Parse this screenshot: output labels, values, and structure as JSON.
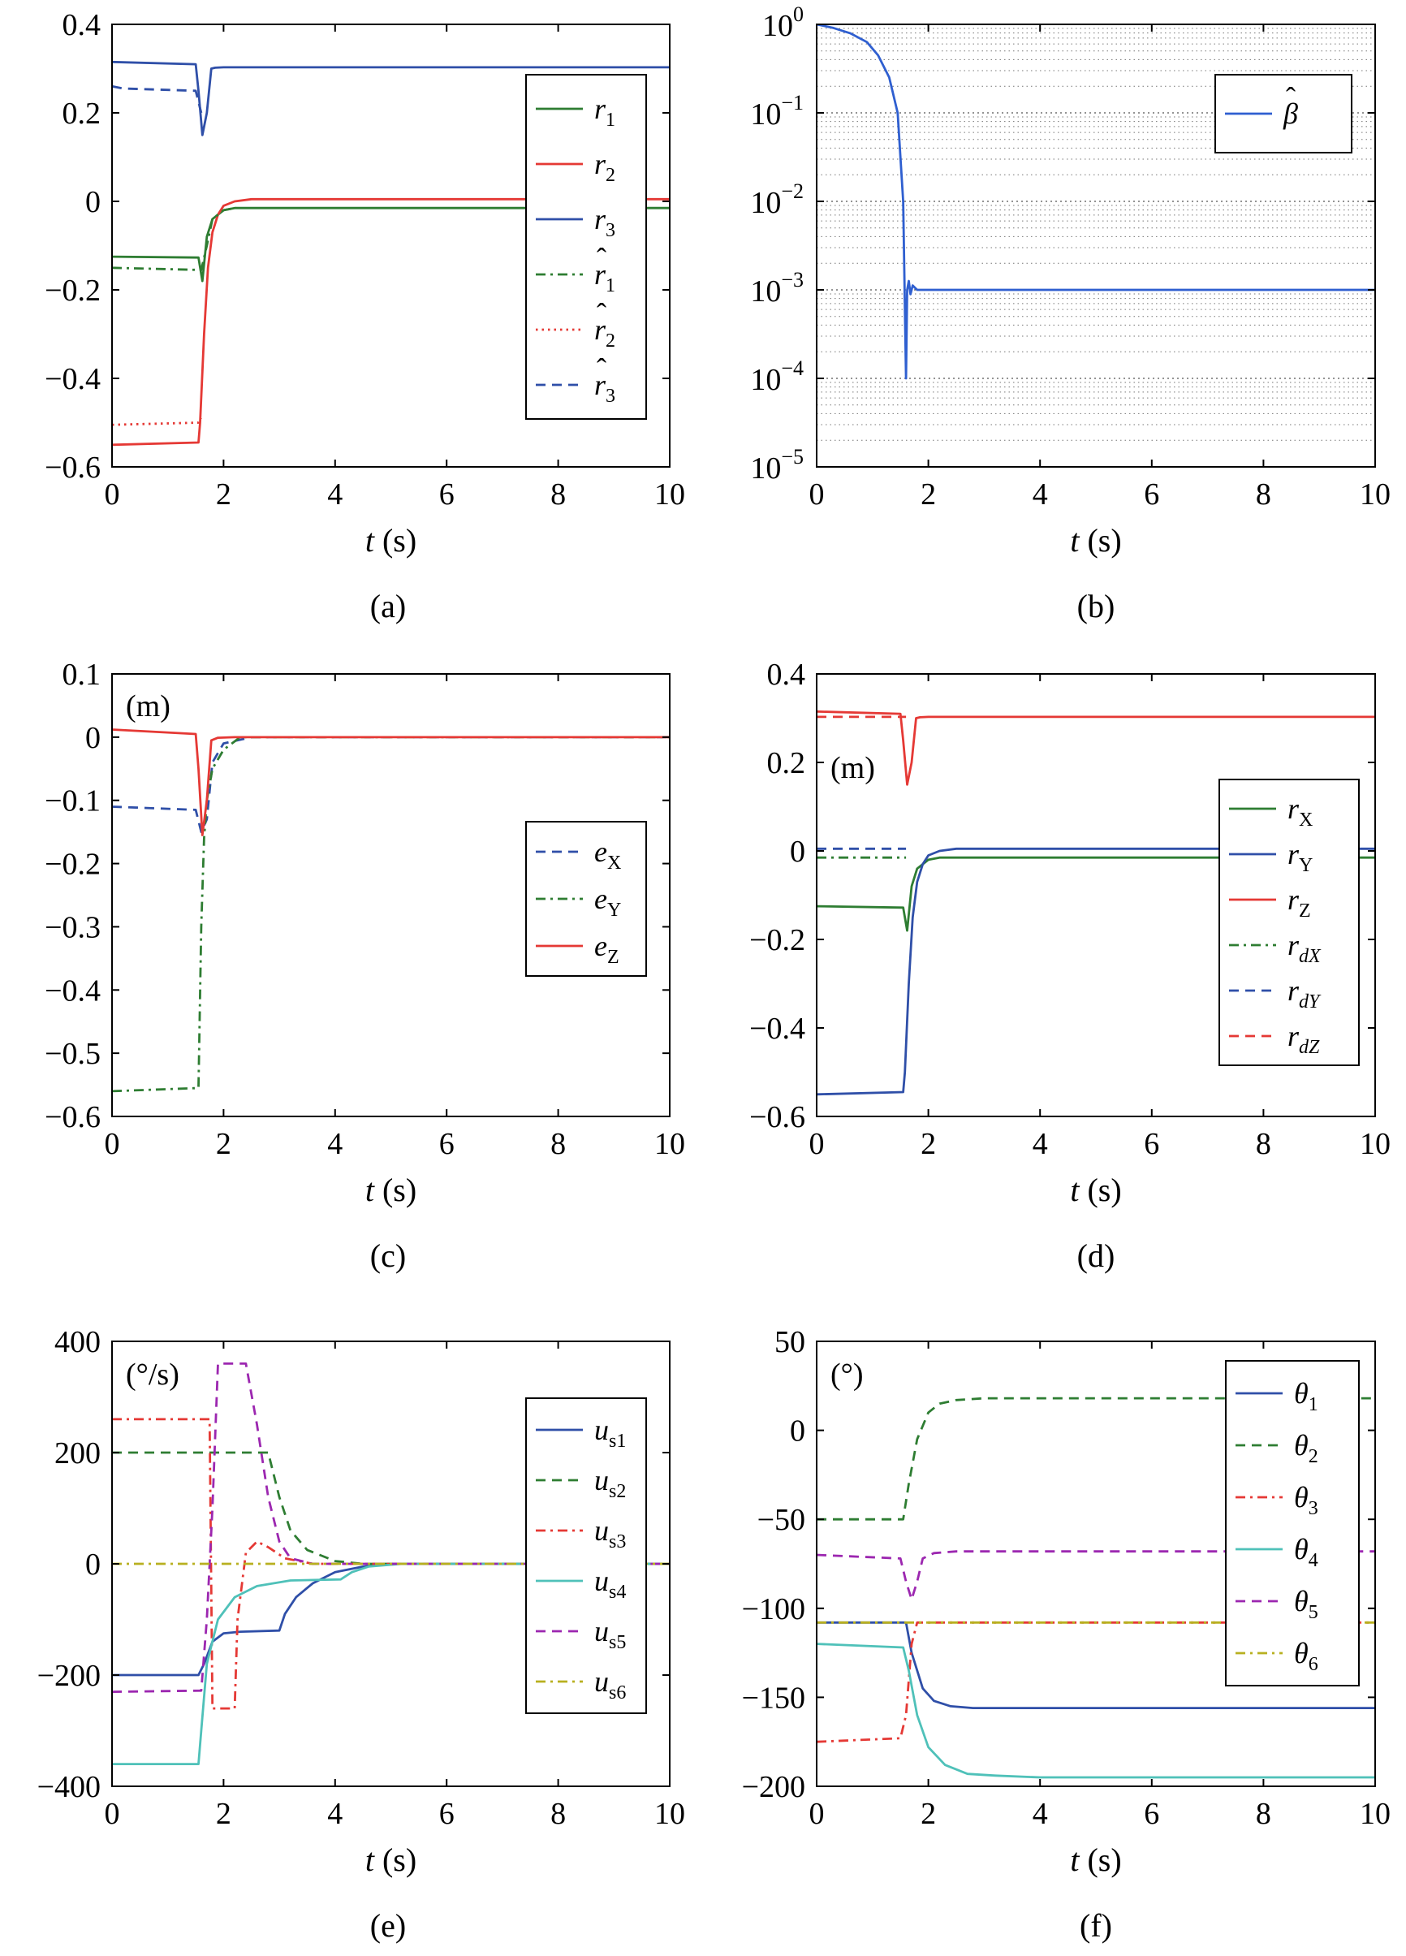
{
  "colors": {
    "green": "#2e7d32",
    "red": "#e53935",
    "blue": "#2f4fa8",
    "beta": "#2f5fd0",
    "cyan": "#4fc1b9",
    "purple": "#9c27b0",
    "olive": "#b8b020"
  },
  "chart_data": [
    {
      "id": "a",
      "type": "line",
      "panel_label": "(a)",
      "inner_label": "",
      "xlabel_italic": "t",
      "xlabel_unit": " (s)",
      "xlim": [
        0,
        10
      ],
      "ylim": [
        -0.6,
        0.4
      ],
      "xticks": [
        0,
        2,
        4,
        6,
        8,
        10
      ],
      "xtick_labels": [
        "0",
        "2",
        "4",
        "6",
        "8",
        "10"
      ],
      "yticks": [
        0.4,
        0.2,
        0,
        -0.2,
        -0.4,
        -0.6
      ],
      "ytick_labels": [
        "0.4",
        "0.2",
        "0",
        "−0.2",
        "−0.4",
        "−0.6"
      ],
      "legend": {
        "position": "right",
        "entries": [
          {
            "sym": "r",
            "sub": "1",
            "hat": false
          },
          {
            "sym": "r",
            "sub": "2",
            "hat": false
          },
          {
            "sym": "r",
            "sub": "3",
            "hat": false
          },
          {
            "sym": "r",
            "sub": "1",
            "hat": true
          },
          {
            "sym": "r",
            "sub": "2",
            "hat": true
          },
          {
            "sym": "r",
            "sub": "3",
            "hat": true
          }
        ]
      },
      "series": [
        {
          "color": "green",
          "dash": "solid",
          "x": [
            0,
            1.55,
            1.62,
            1.7,
            1.8,
            2.0,
            2.2,
            10
          ],
          "y": [
            -0.125,
            -0.127,
            -0.18,
            -0.08,
            -0.04,
            -0.02,
            -0.015,
            -0.015
          ]
        },
        {
          "color": "red",
          "dash": "solid",
          "x": [
            0,
            1.55,
            1.58,
            1.65,
            1.72,
            1.8,
            1.9,
            2.0,
            2.2,
            2.5,
            10
          ],
          "y": [
            -0.55,
            -0.545,
            -0.5,
            -0.3,
            -0.15,
            -0.07,
            -0.03,
            -0.01,
            0.0,
            0.005,
            0.005
          ]
        },
        {
          "color": "blue",
          "dash": "solid",
          "x": [
            0,
            1.5,
            1.55,
            1.62,
            1.7,
            1.78,
            1.85,
            2.0,
            10
          ],
          "y": [
            0.315,
            0.31,
            0.25,
            0.15,
            0.2,
            0.3,
            0.302,
            0.303,
            0.303
          ]
        },
        {
          "color": "green",
          "dash": "dashdot",
          "x": [
            0,
            1.6,
            1.7,
            1.8,
            2.0,
            2.2
          ],
          "y": [
            -0.15,
            -0.155,
            -0.1,
            -0.04,
            -0.02,
            -0.015
          ]
        },
        {
          "color": "red",
          "dash": "dotted",
          "x": [
            0,
            1.55,
            1.6
          ],
          "y": [
            -0.505,
            -0.5,
            -0.49
          ]
        },
        {
          "color": "blue",
          "dash": "dashed",
          "x": [
            0,
            0.2,
            1.5,
            1.6
          ],
          "y": [
            0.26,
            0.255,
            0.25,
            0.2
          ]
        }
      ]
    },
    {
      "id": "b",
      "type": "line",
      "panel_label": "(b)",
      "inner_label": "",
      "xlabel_italic": "t",
      "xlabel_unit": " (s)",
      "xlim": [
        0,
        10
      ],
      "ylim": [
        -5,
        0
      ],
      "log_y": true,
      "grid": "log-y dotted",
      "xticks": [
        0,
        2,
        4,
        6,
        8,
        10
      ],
      "xtick_labels": [
        "0",
        "2",
        "4",
        "6",
        "8",
        "10"
      ],
      "yticks": [
        0,
        -1,
        -2,
        -3,
        -4,
        -5
      ],
      "ytick_bases": [
        "10",
        "10",
        "10",
        "10",
        "10",
        "10"
      ],
      "ytick_exps": [
        "0",
        "−1",
        "−2",
        "−3",
        "−4",
        "−5"
      ],
      "legend": {
        "position": "top-right",
        "entries": [
          {
            "sym": "β",
            "sub": "",
            "hat": true
          }
        ]
      },
      "series": [
        {
          "color": "beta",
          "dash": "solid",
          "x": [
            0,
            0.3,
            0.6,
            0.9,
            1.1,
            1.3,
            1.45,
            1.55,
            1.6,
            1.62,
            1.65,
            1.68,
            1.72,
            1.8,
            1.9,
            10
          ],
          "y": [
            0,
            -0.04,
            -0.1,
            -0.2,
            -0.35,
            -0.6,
            -1.0,
            -2.0,
            -4.0,
            -3.0,
            -2.9,
            -3.05,
            -2.95,
            -3.0,
            -3.0,
            -3.0
          ]
        }
      ]
    },
    {
      "id": "c",
      "type": "line",
      "panel_label": "(c)",
      "inner_label": "(m)",
      "xlabel_italic": "t",
      "xlabel_unit": " (s)",
      "xlim": [
        0,
        10
      ],
      "ylim": [
        -0.6,
        0.1
      ],
      "xticks": [
        0,
        2,
        4,
        6,
        8,
        10
      ],
      "xtick_labels": [
        "0",
        "2",
        "4",
        "6",
        "8",
        "10"
      ],
      "yticks": [
        0.1,
        0,
        -0.1,
        -0.2,
        -0.3,
        -0.4,
        -0.5,
        -0.6
      ],
      "ytick_labels": [
        "0.1",
        "0",
        "−0.1",
        "−0.2",
        "−0.3",
        "−0.4",
        "−0.5",
        "−0.6"
      ],
      "legend": {
        "position": "right",
        "entries": [
          {
            "sym": "e",
            "sub": "X",
            "hat": false
          },
          {
            "sym": "e",
            "sub": "Y",
            "hat": false
          },
          {
            "sym": "e",
            "sub": "Z",
            "hat": false
          }
        ]
      },
      "series": [
        {
          "color": "blue",
          "dash": "dashed",
          "x": [
            0,
            1.5,
            1.6,
            1.7,
            1.8,
            2.0,
            2.5,
            10
          ],
          "y": [
            -0.11,
            -0.115,
            -0.15,
            -0.13,
            -0.04,
            -0.01,
            0,
            0
          ]
        },
        {
          "color": "green",
          "dash": "dashdot",
          "x": [
            0,
            1.55,
            1.6,
            1.65,
            1.7,
            1.8,
            2.0,
            2.3,
            10
          ],
          "y": [
            -0.56,
            -0.555,
            -0.3,
            -0.16,
            -0.1,
            -0.05,
            -0.02,
            0,
            0
          ]
        },
        {
          "color": "red",
          "dash": "solid",
          "x": [
            0,
            1.5,
            1.55,
            1.62,
            1.7,
            1.78,
            1.9,
            2.2,
            10
          ],
          "y": [
            0.012,
            0.005,
            -0.05,
            -0.155,
            -0.1,
            -0.005,
            -0.001,
            0,
            0
          ]
        }
      ]
    },
    {
      "id": "d",
      "type": "line",
      "panel_label": "(d)",
      "inner_label": "(m)",
      "xlabel_italic": "t",
      "xlabel_unit": " (s)",
      "xlim": [
        0,
        10
      ],
      "ylim": [
        -0.6,
        0.4
      ],
      "xticks": [
        0,
        2,
        4,
        6,
        8,
        10
      ],
      "xtick_labels": [
        "0",
        "2",
        "4",
        "6",
        "8",
        "10"
      ],
      "yticks": [
        0.4,
        0.2,
        0,
        -0.2,
        -0.4,
        -0.6
      ],
      "ytick_labels": [
        "0.4",
        "0.2",
        "0",
        "−0.2",
        "−0.4",
        "−0.6"
      ],
      "legend": {
        "position": "right",
        "entries": [
          {
            "sym": "r",
            "sub": "X",
            "hat": false
          },
          {
            "sym": "r",
            "sub": "Y",
            "hat": false
          },
          {
            "sym": "r",
            "sub": "Z",
            "hat": false
          },
          {
            "sym": "r",
            "sub": "dX",
            "hat": false
          },
          {
            "sym": "r",
            "sub": "dY",
            "hat": false
          },
          {
            "sym": "r",
            "sub": "dZ",
            "hat": false
          }
        ]
      },
      "series": [
        {
          "color": "green",
          "dash": "solid",
          "x": [
            0,
            1.55,
            1.62,
            1.7,
            1.8,
            2.0,
            2.2,
            10
          ],
          "y": [
            -0.125,
            -0.128,
            -0.18,
            -0.08,
            -0.04,
            -0.02,
            -0.015,
            -0.015
          ]
        },
        {
          "color": "blue",
          "dash": "solid",
          "x": [
            0,
            1.55,
            1.58,
            1.65,
            1.72,
            1.8,
            1.9,
            2.0,
            2.2,
            2.5,
            10
          ],
          "y": [
            -0.55,
            -0.545,
            -0.5,
            -0.3,
            -0.15,
            -0.07,
            -0.03,
            -0.01,
            0.0,
            0.005,
            0.005
          ]
        },
        {
          "color": "red",
          "dash": "solid",
          "x": [
            0,
            1.5,
            1.55,
            1.62,
            1.7,
            1.78,
            1.85,
            2.0,
            10
          ],
          "y": [
            0.315,
            0.31,
            0.25,
            0.15,
            0.2,
            0.3,
            0.302,
            0.303,
            0.303
          ]
        },
        {
          "color": "green",
          "dash": "dashdot",
          "x": [
            0,
            1.6
          ],
          "y": [
            -0.015,
            -0.015
          ]
        },
        {
          "color": "blue",
          "dash": "dashed",
          "x": [
            0,
            1.6
          ],
          "y": [
            0.005,
            0.005
          ]
        },
        {
          "color": "red",
          "dash": "dashed",
          "x": [
            0,
            1.6
          ],
          "y": [
            0.303,
            0.303
          ]
        }
      ]
    },
    {
      "id": "e",
      "type": "line",
      "panel_label": "(e)",
      "inner_label": "(°/s)",
      "xlabel_italic": "t",
      "xlabel_unit": " (s)",
      "xlim": [
        0,
        10
      ],
      "ylim": [
        -400,
        400
      ],
      "xticks": [
        0,
        2,
        4,
        6,
        8,
        10
      ],
      "xtick_labels": [
        "0",
        "2",
        "4",
        "6",
        "8",
        "10"
      ],
      "yticks": [
        400,
        200,
        0,
        -200,
        -400
      ],
      "ytick_labels": [
        "400",
        "200",
        "0",
        "−200",
        "−400"
      ],
      "legend": {
        "position": "right",
        "entries": [
          {
            "sym": "u",
            "sub": "s1",
            "hat": false
          },
          {
            "sym": "u",
            "sub": "s2",
            "hat": false
          },
          {
            "sym": "u",
            "sub": "s3",
            "hat": false
          },
          {
            "sym": "u",
            "sub": "s4",
            "hat": false
          },
          {
            "sym": "u",
            "sub": "s5",
            "hat": false
          },
          {
            "sym": "u",
            "sub": "s6",
            "hat": false
          }
        ]
      },
      "series": [
        {
          "color": "blue",
          "dash": "solid",
          "x": [
            0,
            1.55,
            1.65,
            1.8,
            2.0,
            2.3,
            3.0,
            3.1,
            3.3,
            3.6,
            4.0,
            4.5,
            5.0,
            10
          ],
          "y": [
            -200,
            -200,
            -180,
            -140,
            -125,
            -122,
            -120,
            -90,
            -60,
            -35,
            -15,
            -5,
            0,
            0
          ]
        },
        {
          "color": "green",
          "dash": "dashed",
          "x": [
            0,
            2.8,
            3.0,
            3.2,
            3.5,
            4.0,
            4.5,
            10
          ],
          "y": [
            200,
            200,
            120,
            60,
            25,
            5,
            0,
            0
          ]
        },
        {
          "color": "red",
          "dash": "dashdot",
          "x": [
            0,
            1.75,
            1.8,
            2.2,
            2.25,
            2.4,
            2.6,
            2.8,
            3.1,
            3.6,
            4.2,
            10
          ],
          "y": [
            260,
            260,
            -260,
            -260,
            -100,
            20,
            40,
            30,
            10,
            0,
            0,
            0
          ]
        },
        {
          "color": "cyan",
          "dash": "solid",
          "x": [
            0,
            1.55,
            1.6,
            1.7,
            1.9,
            2.2,
            2.6,
            3.2,
            4.1,
            4.3,
            4.6,
            5.2,
            10
          ],
          "y": [
            -360,
            -360,
            -300,
            -180,
            -100,
            -60,
            -40,
            -30,
            -28,
            -15,
            -5,
            0,
            0
          ]
        },
        {
          "color": "purple",
          "dash": "dashed",
          "x": [
            0,
            1.6,
            1.7,
            1.8,
            1.9,
            2.0,
            2.4,
            2.6,
            2.8,
            3.0,
            3.2,
            3.6,
            4.2,
            10
          ],
          "y": [
            -230,
            -228,
            -100,
            100,
            360,
            360,
            360,
            250,
            120,
            40,
            10,
            0,
            0,
            0
          ]
        },
        {
          "color": "olive",
          "dash": "dashdot",
          "x": [
            0,
            10
          ],
          "y": [
            0,
            0
          ]
        }
      ]
    },
    {
      "id": "f",
      "type": "line",
      "panel_label": "(f)",
      "inner_label": "(°)",
      "xlabel_italic": "t",
      "xlabel_unit": " (s)",
      "xlim": [
        0,
        10
      ],
      "ylim": [
        -200,
        50
      ],
      "xticks": [
        0,
        2,
        4,
        6,
        8,
        10
      ],
      "xtick_labels": [
        "0",
        "2",
        "4",
        "6",
        "8",
        "10"
      ],
      "yticks": [
        50,
        0,
        -50,
        -100,
        -150,
        -200
      ],
      "ytick_labels": [
        "50",
        "0",
        "−50",
        "−100",
        "−150",
        "−200"
      ],
      "legend": {
        "position": "top-right",
        "entries": [
          {
            "sym": "θ",
            "sub": "1",
            "hat": false
          },
          {
            "sym": "θ",
            "sub": "2",
            "hat": false
          },
          {
            "sym": "θ",
            "sub": "3",
            "hat": false
          },
          {
            "sym": "θ",
            "sub": "4",
            "hat": false
          },
          {
            "sym": "θ",
            "sub": "5",
            "hat": false
          },
          {
            "sym": "θ",
            "sub": "6",
            "hat": false
          }
        ]
      },
      "series": [
        {
          "color": "blue",
          "dash": "solid",
          "x": [
            0,
            1.6,
            1.7,
            1.9,
            2.1,
            2.4,
            2.8,
            3.2,
            10
          ],
          "y": [
            -108,
            -108,
            -125,
            -145,
            -152,
            -155,
            -156,
            -156,
            -156
          ]
        },
        {
          "color": "green",
          "dash": "dashed",
          "x": [
            0,
            1.55,
            1.65,
            1.8,
            2.0,
            2.2,
            2.5,
            3.0,
            10
          ],
          "y": [
            -50,
            -50,
            -30,
            -5,
            10,
            15,
            17,
            18,
            18
          ]
        },
        {
          "color": "red",
          "dash": "dashdot",
          "x": [
            0,
            1.5,
            1.6,
            1.7,
            1.8,
            2.0,
            10
          ],
          "y": [
            -175,
            -173,
            -160,
            -120,
            -108,
            -108,
            -108
          ]
        },
        {
          "color": "cyan",
          "dash": "solid",
          "x": [
            0,
            1.55,
            1.65,
            1.8,
            2.0,
            2.3,
            2.7,
            3.2,
            4.0,
            10
          ],
          "y": [
            -120,
            -122,
            -135,
            -160,
            -178,
            -188,
            -193,
            -194,
            -195,
            -195
          ]
        },
        {
          "color": "purple",
          "dash": "dashed",
          "x": [
            0,
            1.5,
            1.6,
            1.7,
            1.8,
            1.9,
            2.1,
            2.5,
            10
          ],
          "y": [
            -70,
            -72,
            -85,
            -95,
            -85,
            -72,
            -69,
            -68,
            -68
          ]
        },
        {
          "color": "olive",
          "dash": "dashdot",
          "x": [
            0,
            10
          ],
          "y": [
            -108,
            -108
          ]
        }
      ]
    }
  ]
}
